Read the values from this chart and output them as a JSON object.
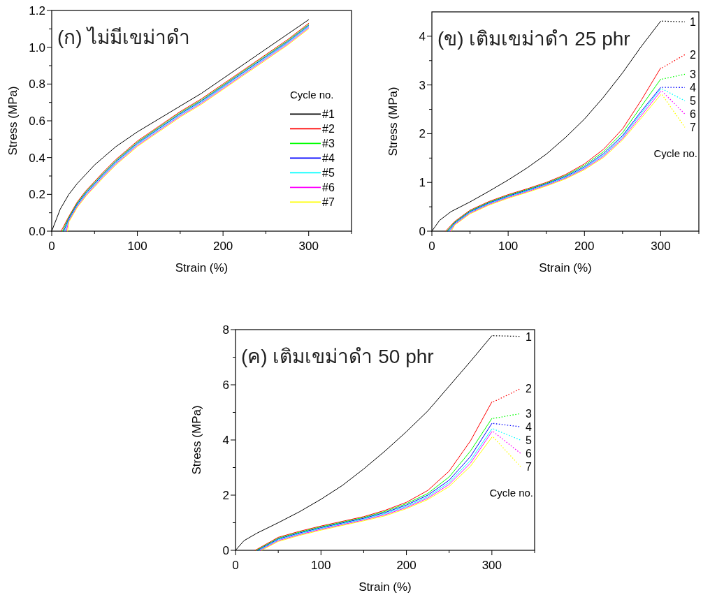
{
  "chart_data": [
    {
      "type": "line",
      "title": "(ก) ไม่มีเขม่าดำ",
      "xlabel": "Strain (%)",
      "ylabel": "Stress (MPa)",
      "legend_title": "Cycle no.",
      "legend": "right",
      "xlim": [
        0,
        350
      ],
      "ylim": [
        0,
        1.2
      ],
      "xticks": [
        0,
        {
          "value": 50,
          "label": null
        },
        100,
        {
          "value": 150,
          "label": null
        },
        200,
        {
          "value": 250,
          "label": null
        },
        300,
        {
          "value": 350,
          "label": null
        }
      ],
      "yticks": [
        {
          "value": 0,
          "label": "0.0"
        },
        {
          "value": 0.1,
          "label": null
        },
        {
          "value": 0.2,
          "label": "0.2"
        },
        {
          "value": 0.3,
          "label": null
        },
        {
          "value": 0.4,
          "label": "0.4"
        },
        {
          "value": 0.5,
          "label": null
        },
        {
          "value": 0.6,
          "label": "0.6"
        },
        {
          "value": 0.7,
          "label": null
        },
        {
          "value": 0.8,
          "label": "0.8"
        },
        {
          "value": 0.9,
          "label": null
        },
        {
          "value": 1.0,
          "label": "1.0"
        },
        {
          "value": 1.1,
          "label": null
        },
        {
          "value": 1.2,
          "label": "1.2"
        }
      ],
      "series": [
        {
          "name": "#1",
          "color": "#000000",
          "x": [
            0,
            10,
            20,
            30,
            40,
            50,
            60,
            75,
            100,
            125,
            150,
            175,
            200,
            225,
            250,
            275,
            300
          ],
          "values": [
            0,
            0.12,
            0.2,
            0.26,
            0.31,
            0.36,
            0.4,
            0.46,
            0.54,
            0.61,
            0.68,
            0.75,
            0.83,
            0.91,
            0.99,
            1.07,
            1.15
          ]
        },
        {
          "name": "#2",
          "color": "#ff0000",
          "x": [
            11,
            20,
            30,
            40,
            50,
            60,
            75,
            100,
            125,
            150,
            175,
            200,
            225,
            250,
            275,
            300
          ],
          "values": [
            0,
            0.08,
            0.16,
            0.22,
            0.27,
            0.32,
            0.39,
            0.49,
            0.57,
            0.65,
            0.72,
            0.8,
            0.88,
            0.96,
            1.04,
            1.13
          ]
        },
        {
          "name": "#3",
          "color": "#00ff00",
          "x": [
            12.5,
            20,
            30,
            40,
            50,
            60,
            75,
            100,
            125,
            150,
            175,
            200,
            225,
            250,
            275,
            300
          ],
          "values": [
            0,
            0.074,
            0.154,
            0.214,
            0.264,
            0.314,
            0.384,
            0.484,
            0.564,
            0.644,
            0.714,
            0.794,
            0.874,
            0.954,
            1.034,
            1.124
          ]
        },
        {
          "name": "#4",
          "color": "#0000ff",
          "x": [
            14,
            20,
            30,
            40,
            50,
            60,
            75,
            100,
            125,
            150,
            175,
            200,
            225,
            250,
            275,
            300
          ],
          "values": [
            0,
            0.068,
            0.148,
            0.208,
            0.258,
            0.308,
            0.378,
            0.478,
            0.558,
            0.638,
            0.708,
            0.788,
            0.868,
            0.948,
            1.028,
            1.118
          ]
        },
        {
          "name": "#5",
          "color": "#00ffff",
          "x": [
            15.5,
            20,
            30,
            40,
            50,
            60,
            75,
            100,
            125,
            150,
            175,
            200,
            225,
            250,
            275,
            300
          ],
          "values": [
            0,
            0.062,
            0.142,
            0.202,
            0.252,
            0.302,
            0.372,
            0.472,
            0.552,
            0.632,
            0.702,
            0.782,
            0.862,
            0.942,
            1.022,
            1.112
          ]
        },
        {
          "name": "#6",
          "color": "#ff00ff",
          "x": [
            17,
            20,
            30,
            40,
            50,
            60,
            75,
            100,
            125,
            150,
            175,
            200,
            225,
            250,
            275,
            300
          ],
          "values": [
            0,
            0.056,
            0.136,
            0.196,
            0.246,
            0.296,
            0.366,
            0.466,
            0.546,
            0.626,
            0.696,
            0.776,
            0.856,
            0.936,
            1.016,
            1.106
          ]
        },
        {
          "name": "#7",
          "color": "#ffff00",
          "x": [
            18.5,
            20,
            30,
            40,
            50,
            60,
            75,
            100,
            125,
            150,
            175,
            200,
            225,
            250,
            275,
            300
          ],
          "values": [
            0,
            0.05,
            0.13,
            0.19,
            0.24,
            0.29,
            0.36,
            0.46,
            0.54,
            0.62,
            0.69,
            0.77,
            0.85,
            0.93,
            1.01,
            1.1
          ]
        }
      ]
    },
    {
      "type": "line",
      "title": "(ข) เติมเขม่าดำ 25 phr",
      "xlabel": "Strain (%)",
      "ylabel": "Stress (MPa)",
      "legend_title": "Cycle no.",
      "legend": "right",
      "xlim": [
        0,
        350
      ],
      "ylim": [
        0,
        4.5
      ],
      "xticks": [
        0,
        {
          "value": 50,
          "label": null
        },
        100,
        {
          "value": 150,
          "label": null
        },
        200,
        {
          "value": 250,
          "label": null
        },
        300,
        {
          "value": 350,
          "label": null
        }
      ],
      "yticks": [
        0,
        {
          "value": 0.5,
          "label": null
        },
        1,
        {
          "value": 1.5,
          "label": null
        },
        2,
        {
          "value": 2.5,
          "label": null
        },
        3,
        {
          "value": 3.5,
          "label": null
        },
        4
      ],
      "series": [
        {
          "name": "1",
          "color": "#000000",
          "x": [
            0,
            10,
            25,
            50,
            75,
            100,
            125,
            150,
            175,
            200,
            225,
            250,
            275,
            300
          ],
          "values": [
            0,
            0.22,
            0.4,
            0.6,
            0.82,
            1.05,
            1.3,
            1.58,
            1.92,
            2.3,
            2.75,
            3.25,
            3.8,
            4.31
          ]
        },
        {
          "name": "2",
          "color": "#ff0000",
          "x": [
            18,
            30,
            50,
            75,
            100,
            125,
            150,
            175,
            200,
            225,
            250,
            275,
            300
          ],
          "values": [
            0,
            0.2,
            0.43,
            0.61,
            0.75,
            0.87,
            1.0,
            1.16,
            1.38,
            1.68,
            2.1,
            2.7,
            3.35
          ]
        },
        {
          "name": "3",
          "color": "#00ff00",
          "x": [
            19.5,
            30,
            50,
            75,
            100,
            125,
            150,
            175,
            200,
            225,
            250,
            275,
            300
          ],
          "values": [
            0,
            0.185,
            0.415,
            0.595,
            0.735,
            0.855,
            0.985,
            1.14,
            1.35,
            1.63,
            2.02,
            2.57,
            3.12
          ]
        },
        {
          "name": "4",
          "color": "#0000ff",
          "x": [
            21,
            30,
            50,
            75,
            100,
            125,
            150,
            175,
            200,
            225,
            250,
            275,
            300
          ],
          "values": [
            0,
            0.17,
            0.4,
            0.58,
            0.72,
            0.84,
            0.97,
            1.12,
            1.32,
            1.59,
            1.96,
            2.47,
            2.95
          ]
        },
        {
          "name": "5",
          "color": "#00ffff",
          "x": [
            22.5,
            30,
            50,
            75,
            100,
            125,
            150,
            175,
            200,
            225,
            250,
            275,
            300
          ],
          "values": [
            0,
            0.155,
            0.385,
            0.565,
            0.705,
            0.825,
            0.955,
            1.1,
            1.3,
            1.56,
            1.93,
            2.43,
            2.92
          ]
        },
        {
          "name": "6",
          "color": "#ff00ff",
          "x": [
            24,
            30,
            50,
            75,
            100,
            125,
            150,
            175,
            200,
            225,
            250,
            275,
            300
          ],
          "values": [
            0,
            0.14,
            0.37,
            0.55,
            0.69,
            0.81,
            0.94,
            1.085,
            1.28,
            1.535,
            1.9,
            2.38,
            2.87
          ]
        },
        {
          "name": "7",
          "color": "#ffff00",
          "x": [
            25.5,
            30,
            50,
            75,
            100,
            125,
            150,
            175,
            200,
            225,
            250,
            275,
            300
          ],
          "values": [
            0,
            0.125,
            0.355,
            0.535,
            0.675,
            0.795,
            0.925,
            1.07,
            1.26,
            1.51,
            1.87,
            2.33,
            2.8
          ]
        }
      ]
    },
    {
      "type": "line",
      "title": "(ค) เติมเขม่าดำ 50 phr",
      "xlabel": "Strain (%)",
      "ylabel": "Stress (MPa)",
      "legend_title": "Cycle no.",
      "legend": "right",
      "xlim": [
        0,
        350
      ],
      "ylim": [
        0,
        8
      ],
      "xticks": [
        0,
        {
          "value": 50,
          "label": null
        },
        100,
        {
          "value": 150,
          "label": null
        },
        200,
        {
          "value": 250,
          "label": null
        },
        300,
        {
          "value": 350,
          "label": null
        }
      ],
      "yticks": [
        0,
        {
          "value": 1,
          "label": null
        },
        2,
        {
          "value": 3,
          "label": null
        },
        4,
        {
          "value": 5,
          "label": null
        },
        6,
        {
          "value": 7,
          "label": null
        },
        8
      ],
      "series": [
        {
          "name": "1",
          "color": "#000000",
          "x": [
            0,
            10,
            25,
            50,
            75,
            100,
            125,
            150,
            175,
            200,
            225,
            250,
            275,
            300
          ],
          "values": [
            0,
            0.35,
            0.62,
            1.0,
            1.4,
            1.85,
            2.35,
            2.95,
            3.6,
            4.3,
            5.05,
            5.95,
            6.85,
            7.78
          ]
        },
        {
          "name": "2",
          "color": "#ff0000",
          "x": [
            23,
            50,
            75,
            100,
            125,
            150,
            175,
            200,
            225,
            250,
            275,
            300
          ],
          "values": [
            0,
            0.47,
            0.69,
            0.88,
            1.05,
            1.22,
            1.45,
            1.74,
            2.17,
            2.87,
            3.97,
            5.38
          ]
        },
        {
          "name": "3",
          "color": "#00ff00",
          "x": [
            24.5,
            50,
            75,
            100,
            125,
            150,
            175,
            200,
            225,
            250,
            275,
            300
          ],
          "values": [
            0,
            0.44,
            0.66,
            0.85,
            1.02,
            1.19,
            1.41,
            1.69,
            2.06,
            2.66,
            3.6,
            4.78
          ]
        },
        {
          "name": "4",
          "color": "#0000ff",
          "x": [
            26,
            50,
            75,
            100,
            125,
            150,
            175,
            200,
            225,
            250,
            275,
            300
          ],
          "values": [
            0,
            0.41,
            0.63,
            0.82,
            0.99,
            1.16,
            1.37,
            1.64,
            2.0,
            2.54,
            3.4,
            4.6
          ]
        },
        {
          "name": "5",
          "color": "#00ffff",
          "x": [
            27.5,
            50,
            75,
            100,
            125,
            150,
            175,
            200,
            225,
            250,
            275,
            300
          ],
          "values": [
            0,
            0.38,
            0.6,
            0.79,
            0.96,
            1.13,
            1.33,
            1.59,
            1.94,
            2.46,
            3.26,
            4.4
          ]
        },
        {
          "name": "6",
          "color": "#ff00ff",
          "x": [
            29,
            50,
            75,
            100,
            125,
            150,
            175,
            200,
            225,
            250,
            275,
            300
          ],
          "values": [
            0,
            0.35,
            0.57,
            0.76,
            0.93,
            1.1,
            1.29,
            1.55,
            1.89,
            2.39,
            3.16,
            4.3
          ]
        },
        {
          "name": "7",
          "color": "#ffff00",
          "x": [
            30.5,
            50,
            75,
            100,
            125,
            150,
            175,
            200,
            225,
            250,
            275,
            300
          ],
          "values": [
            0,
            0.32,
            0.54,
            0.73,
            0.9,
            1.07,
            1.25,
            1.51,
            1.84,
            2.31,
            3.05,
            4.1
          ]
        }
      ]
    }
  ]
}
